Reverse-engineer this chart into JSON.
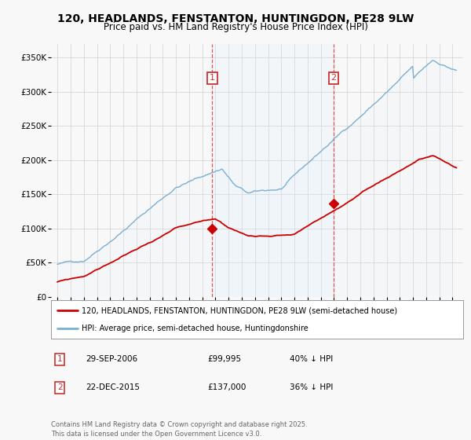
{
  "title": "120, HEADLANDS, FENSTANTON, HUNTINGDON, PE28 9LW",
  "subtitle": "Price paid vs. HM Land Registry's House Price Index (HPI)",
  "legend_label_red": "120, HEADLANDS, FENSTANTON, HUNTINGDON, PE28 9LW (semi-detached house)",
  "legend_label_blue": "HPI: Average price, semi-detached house, Huntingdonshire",
  "annotation1_label": "1",
  "annotation1_date": "29-SEP-2006",
  "annotation1_price": "£99,995",
  "annotation1_note": "40% ↓ HPI",
  "annotation2_label": "2",
  "annotation2_date": "22-DEC-2015",
  "annotation2_price": "£137,000",
  "annotation2_note": "36% ↓ HPI",
  "footer": "Contains HM Land Registry data © Crown copyright and database right 2025.\nThis data is licensed under the Open Government Licence v3.0.",
  "red_color": "#cc0000",
  "blue_color": "#7aafd4",
  "blue_fill_color": "#ddeeff",
  "vline_color": "#dd4444",
  "annotation_box_color": "#cc3333",
  "background_color": "#f8f8f8",
  "ylim": [
    0,
    370000
  ],
  "yticks": [
    0,
    50000,
    100000,
    150000,
    200000,
    250000,
    300000,
    350000
  ],
  "sale1_x": 2006.75,
  "sale1_y": 99995,
  "sale2_x": 2015.97,
  "sale2_y": 137000,
  "xmin": 1994.5,
  "xmax": 2025.8
}
